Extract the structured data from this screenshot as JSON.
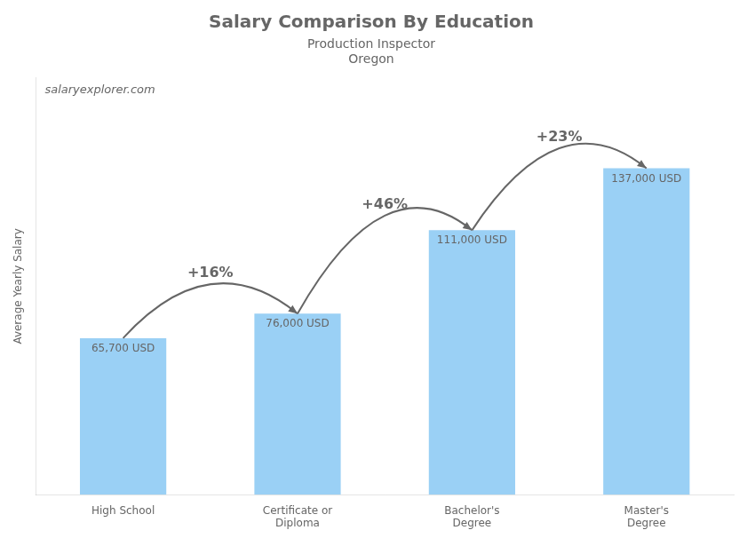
{
  "chart_data": {
    "type": "bar",
    "title": "Salary Comparison By Education",
    "subtitle": [
      "Production Inspector",
      "Oregon"
    ],
    "ylabel": "Average Yearly Salary",
    "categories": [
      "High School",
      "Certificate or\nDiploma",
      "Bachelor's\nDegree",
      "Master's\nDegree"
    ],
    "values": [
      65700,
      76000,
      111000,
      137000
    ],
    "value_labels": [
      "65,700 USD",
      "76,000 USD",
      "111,000 USD",
      "137,000 USD"
    ],
    "data_labels": true,
    "ylim": [
      0,
      175000
    ],
    "tick_labels": "x",
    "grid": false,
    "annotations": [
      {
        "text": "+16%",
        "from": "High School",
        "to": "Certificate or\nDiploma"
      },
      {
        "text": "+46%",
        "from": "Certificate or\nDiploma",
        "to": "Bachelor's\nDegree"
      },
      {
        "text": "+23%",
        "from": "Bachelor's\nDegree",
        "to": "Master's\nDegree"
      },
      {
        "text": "salaryexplorer.com"
      }
    ]
  }
}
